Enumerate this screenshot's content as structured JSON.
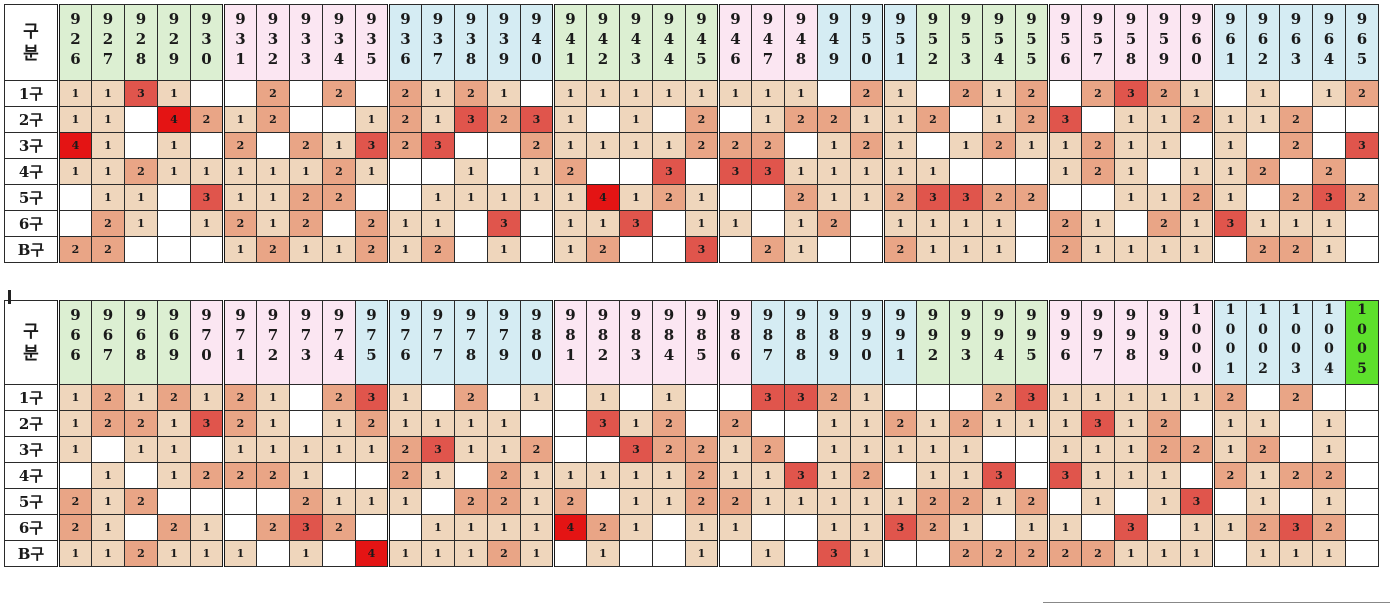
{
  "row_labels": [
    "1구",
    "2구",
    "3구",
    "4구",
    "5구",
    "6구",
    "B구"
  ],
  "corner_top": "구",
  "corner_bottom": "분",
  "colors": {
    "header_green": "#dcefd2",
    "header_pink": "#fbe6f2",
    "header_blue": "#d5ecf3",
    "header_highlight": "#5de02c",
    "level1": "#efd6bc",
    "level2": "#e9a586",
    "level3": "#e0554c",
    "level4": "#e41414"
  },
  "tables": [
    {
      "columns": [
        "926",
        "927",
        "928",
        "929",
        "930",
        "931",
        "932",
        "933",
        "934",
        "935",
        "936",
        "937",
        "938",
        "939",
        "940",
        "941",
        "942",
        "943",
        "944",
        "945",
        "946",
        "947",
        "948",
        "949",
        "950",
        "951",
        "952",
        "953",
        "954",
        "955",
        "956",
        "957",
        "958",
        "959",
        "960",
        "961",
        "962",
        "963",
        "964",
        "965"
      ],
      "header_colors": [
        "g",
        "g",
        "g",
        "g",
        "g",
        "p",
        "p",
        "p",
        "p",
        "p",
        "b",
        "b",
        "b",
        "b",
        "b",
        "g",
        "g",
        "g",
        "g",
        "g",
        "p",
        "p",
        "p",
        "b",
        "b",
        "b",
        "g",
        "g",
        "g",
        "g",
        "p",
        "p",
        "p",
        "p",
        "p",
        "b",
        "b",
        "b",
        "b",
        "b"
      ],
      "rows": [
        [
          "1",
          "1",
          "3",
          "1",
          "",
          "",
          "2",
          "",
          "2",
          "",
          "2",
          "1",
          "2",
          "1",
          "",
          "1",
          "1",
          "1",
          "1",
          "1",
          "1",
          "1",
          "1",
          "",
          "2",
          "1",
          "",
          "2",
          "1",
          "2",
          "",
          "2",
          "3",
          "2",
          "1",
          "",
          "1",
          "",
          "1",
          "2"
        ],
        [
          "1",
          "1",
          "",
          "4",
          "2",
          "1",
          "2",
          "",
          "",
          "1",
          "2",
          "1",
          "3",
          "2",
          "3",
          "1",
          "",
          "1",
          "",
          "2",
          "",
          "1",
          "2",
          "2",
          "1",
          "1",
          "2",
          "",
          "1",
          "2",
          "3",
          "",
          "1",
          "1",
          "2",
          "1",
          "1",
          "2",
          "",
          ""
        ],
        [
          "4",
          "1",
          "",
          "1",
          "",
          "2",
          "",
          "2",
          "1",
          "3",
          "2",
          "3",
          "",
          "",
          "2",
          "1",
          "1",
          "1",
          "1",
          "2",
          "2",
          "2",
          "",
          "1",
          "2",
          "1",
          "",
          "1",
          "2",
          "1",
          "1",
          "2",
          "1",
          "1",
          "",
          "1",
          "",
          "2",
          "",
          "3"
        ],
        [
          "1",
          "1",
          "2",
          "1",
          "1",
          "1",
          "1",
          "1",
          "2",
          "1",
          "",
          "",
          "1",
          "",
          "1",
          "2",
          "",
          "",
          "3",
          "",
          "3",
          "3",
          "1",
          "1",
          "1",
          "1",
          "1",
          "",
          "",
          "",
          "1",
          "2",
          "1",
          "",
          "1",
          "1",
          "2",
          "",
          "2",
          ""
        ],
        [
          "",
          "1",
          "1",
          "",
          "3",
          "1",
          "1",
          "2",
          "2",
          "",
          "",
          "1",
          "1",
          "1",
          "1",
          "1",
          "4",
          "1",
          "2",
          "1",
          "",
          "",
          "2",
          "1",
          "1",
          "2",
          "3",
          "3",
          "2",
          "2",
          "",
          "",
          "1",
          "1",
          "2",
          "1",
          "",
          "2",
          "3",
          "2"
        ],
        [
          "",
          "2",
          "1",
          "",
          "1",
          "2",
          "1",
          "2",
          "",
          "2",
          "1",
          "1",
          "",
          "3",
          "",
          "1",
          "1",
          "3",
          "",
          "1",
          "1",
          "",
          "1",
          "2",
          "",
          "1",
          "1",
          "1",
          "1",
          "",
          "2",
          "1",
          "",
          "2",
          "1",
          "3",
          "1",
          "1",
          "1",
          ""
        ],
        [
          "2",
          "2",
          "",
          "",
          "",
          "1",
          "2",
          "1",
          "1",
          "2",
          "1",
          "2",
          "",
          "1",
          "",
          "1",
          "2",
          "",
          "",
          "3",
          "",
          "2",
          "1",
          "",
          "",
          "2",
          "1",
          "1",
          "1",
          "",
          "2",
          "1",
          "1",
          "1",
          "1",
          "",
          "2",
          "2",
          "1",
          ""
        ]
      ]
    },
    {
      "columns": [
        "966",
        "967",
        "968",
        "969",
        "970",
        "971",
        "972",
        "973",
        "974",
        "975",
        "976",
        "977",
        "978",
        "979",
        "980",
        "981",
        "982",
        "983",
        "984",
        "985",
        "986",
        "987",
        "988",
        "989",
        "990",
        "991",
        "992",
        "993",
        "994",
        "995",
        "996",
        "997",
        "998",
        "999",
        "1000",
        "1001",
        "1002",
        "1003",
        "1004",
        "1005"
      ],
      "header_colors": [
        "g",
        "g",
        "g",
        "g",
        "p",
        "p",
        "p",
        "p",
        "p",
        "b",
        "b",
        "b",
        "b",
        "b",
        "b",
        "p",
        "p",
        "p",
        "p",
        "p",
        "p",
        "b",
        "b",
        "b",
        "b",
        "b",
        "g",
        "g",
        "g",
        "g",
        "p",
        "p",
        "p",
        "p",
        "p",
        "b",
        "b",
        "b",
        "b",
        "h"
      ],
      "rows": [
        [
          "1",
          "2",
          "1",
          "2",
          "1",
          "2",
          "1",
          "",
          "2",
          "3",
          "1",
          "",
          "2",
          "",
          "1",
          "",
          "1",
          "",
          "1",
          "",
          "",
          "3",
          "3",
          "2",
          "1",
          "",
          "",
          "",
          "2",
          "3",
          "1",
          "1",
          "1",
          "1",
          "1",
          "2",
          "",
          "2",
          "",
          ""
        ],
        [
          "1",
          "2",
          "2",
          "1",
          "3",
          "2",
          "1",
          "",
          "1",
          "2",
          "1",
          "1",
          "1",
          "1",
          "",
          "",
          "3",
          "1",
          "2",
          "",
          "2",
          "",
          "",
          "1",
          "1",
          "2",
          "1",
          "2",
          "1",
          "1",
          "1",
          "3",
          "1",
          "2",
          "",
          "1",
          "1",
          "",
          "1",
          ""
        ],
        [
          "1",
          "",
          "1",
          "1",
          "",
          "1",
          "1",
          "1",
          "1",
          "1",
          "2",
          "3",
          "1",
          "1",
          "2",
          "",
          "",
          "3",
          "2",
          "2",
          "1",
          "2",
          "",
          "1",
          "1",
          "1",
          "1",
          "1",
          "",
          "",
          "1",
          "1",
          "1",
          "2",
          "2",
          "1",
          "2",
          "",
          "1",
          ""
        ],
        [
          "",
          "1",
          "",
          "1",
          "2",
          "2",
          "2",
          "1",
          "",
          "",
          "2",
          "1",
          "",
          "2",
          "1",
          "1",
          "1",
          "1",
          "1",
          "2",
          "1",
          "1",
          "3",
          "1",
          "2",
          "",
          "1",
          "1",
          "3",
          "",
          "3",
          "1",
          "1",
          "1",
          "",
          "2",
          "1",
          "2",
          "2",
          ""
        ],
        [
          "2",
          "1",
          "2",
          "",
          "",
          "",
          "",
          "2",
          "1",
          "1",
          "1",
          "",
          "2",
          "2",
          "1",
          "2",
          "",
          "1",
          "1",
          "2",
          "2",
          "1",
          "1",
          "1",
          "1",
          "1",
          "2",
          "2",
          "1",
          "2",
          "",
          "1",
          "",
          "1",
          "3",
          "",
          "1",
          "",
          "1",
          ""
        ],
        [
          "2",
          "1",
          "",
          "2",
          "1",
          "",
          "2",
          "3",
          "2",
          "",
          "",
          "1",
          "1",
          "1",
          "1",
          "4",
          "2",
          "1",
          "",
          "1",
          "1",
          "",
          "",
          "1",
          "1",
          "3",
          "2",
          "1",
          "",
          "1",
          "1",
          "",
          "3",
          "",
          "1",
          "1",
          "2",
          "3",
          "2",
          ""
        ],
        [
          "1",
          "1",
          "2",
          "1",
          "1",
          "1",
          "",
          "1",
          "",
          "4",
          "1",
          "1",
          "1",
          "2",
          "1",
          "",
          "1",
          "",
          "",
          "1",
          "",
          "1",
          "",
          "3",
          "1",
          "",
          "",
          "2",
          "2",
          "2",
          "2",
          "2",
          "1",
          "1",
          "1",
          "",
          "1",
          "1",
          "1",
          ""
        ]
      ]
    }
  ]
}
